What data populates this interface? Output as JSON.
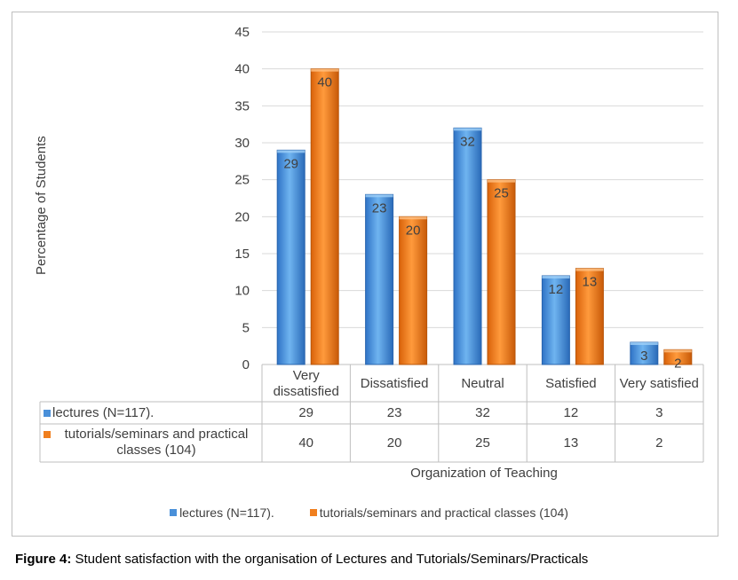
{
  "caption": {
    "prefix": "Figure 4:",
    "text": " Student satisfaction with the organisation of Lectures and Tutorials/Seminars/Practicals"
  },
  "chart_data": {
    "type": "bar",
    "ylabel": "Percentage of Students",
    "xlabel": "Organization of Teaching",
    "ylim": [
      0,
      45
    ],
    "yticks": [
      "0",
      "5",
      "10",
      "15",
      "20",
      "25",
      "30",
      "35",
      "40",
      "45"
    ],
    "categories": [
      "Very dissatisfied",
      "Dissatisfied",
      "Neutral",
      "Satisfied",
      "Very satisfied"
    ],
    "series": [
      {
        "name": "lectures (N=117).",
        "color": "#4a90d9",
        "values": [
          29,
          23,
          32,
          12,
          3
        ]
      },
      {
        "name": "tutorials/seminars and practical classes (104)",
        "color": "#f07f1e",
        "values": [
          40,
          20,
          25,
          13,
          2
        ]
      }
    ],
    "grid": true,
    "legend": "bottom",
    "data_table": true
  }
}
